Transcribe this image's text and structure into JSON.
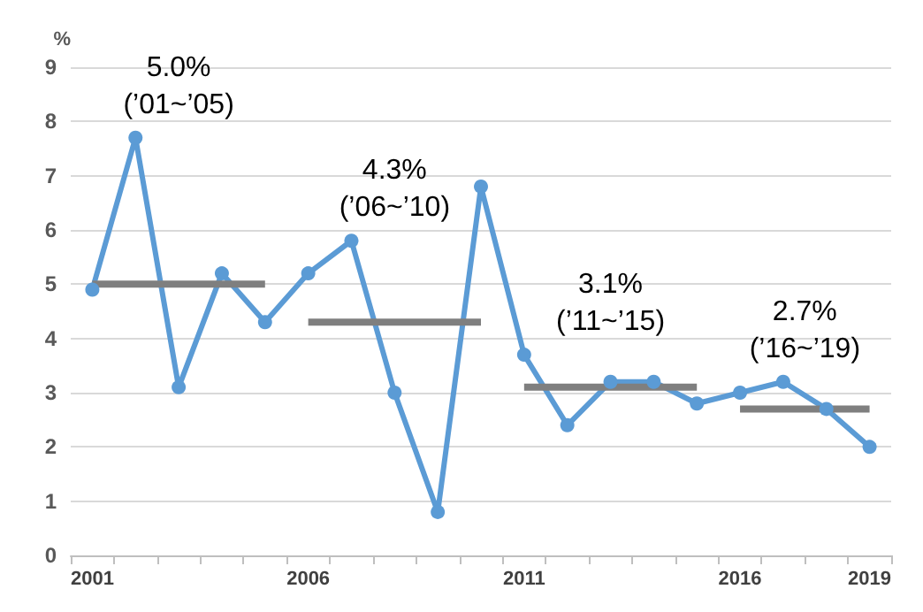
{
  "chart_data": {
    "type": "line",
    "ylabel": "%",
    "categories": [
      "2001",
      null,
      null,
      null,
      null,
      "2006",
      null,
      null,
      null,
      null,
      "2011",
      null,
      null,
      null,
      null,
      "2016",
      null,
      null,
      "2019"
    ],
    "series": [
      {
        "color": "#5b9bd5",
        "marker": "circle",
        "values": [
          4.9,
          7.7,
          3.1,
          5.2,
          4.3,
          5.2,
          5.8,
          3.0,
          0.8,
          6.8,
          3.7,
          2.4,
          3.2,
          3.2,
          2.8,
          3.0,
          3.2,
          2.7,
          2.0
        ]
      },
      {
        "color": "#7f7f7f",
        "marker": "none",
        "values": [
          5.0,
          5.0,
          5.0,
          5.0,
          5.0,
          null,
          null,
          null,
          null,
          null,
          null,
          null,
          null,
          null,
          null,
          null,
          null,
          null,
          null
        ]
      },
      {
        "color": "#7f7f7f",
        "marker": "none",
        "values": [
          null,
          null,
          null,
          null,
          null,
          4.3,
          4.3,
          4.3,
          4.3,
          4.3,
          null,
          null,
          null,
          null,
          null,
          null,
          null,
          null,
          null
        ]
      },
      {
        "color": "#7f7f7f",
        "marker": "none",
        "values": [
          null,
          null,
          null,
          null,
          null,
          null,
          null,
          null,
          null,
          null,
          3.1,
          3.1,
          3.1,
          3.1,
          3.1,
          null,
          null,
          null,
          null
        ]
      },
      {
        "color": "#7f7f7f",
        "marker": "none",
        "values": [
          null,
          null,
          null,
          null,
          null,
          null,
          null,
          null,
          null,
          null,
          null,
          null,
          null,
          null,
          null,
          2.7,
          2.7,
          2.7,
          2.7
        ]
      }
    ],
    "ylim": [
      0,
      9
    ],
    "yticks": [
      0,
      1,
      2,
      3,
      4,
      5,
      6,
      7,
      8,
      9
    ],
    "grid": "y",
    "annotations": [
      "5.0%\n(’01~’05)",
      "4.3%\n(’06~’10)",
      "3.1%\n(’11~’15)",
      "2.7%\n(’16~’19)"
    ]
  }
}
